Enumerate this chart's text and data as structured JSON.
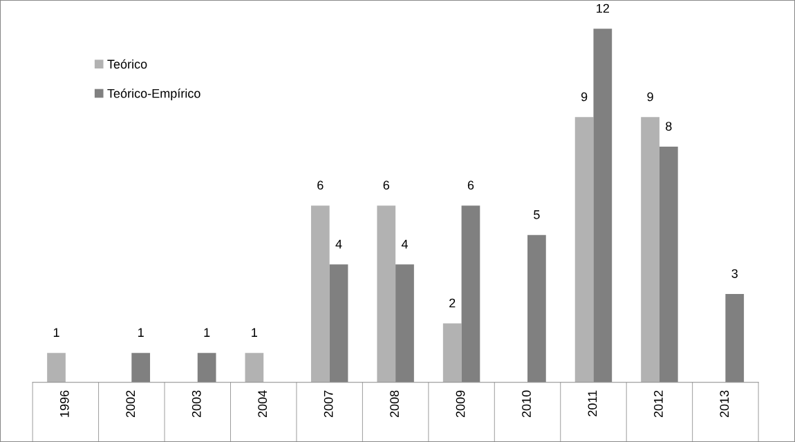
{
  "chart_data": {
    "type": "bar",
    "categories": [
      "1996",
      "2002",
      "2003",
      "2004",
      "2007",
      "2008",
      "2009",
      "2010",
      "2011",
      "2012",
      "2013"
    ],
    "series": [
      {
        "name": "Teórico",
        "color": "#b2b2b2",
        "values": [
          1,
          null,
          null,
          1,
          6,
          6,
          2,
          null,
          9,
          9,
          null
        ]
      },
      {
        "name": "Teórico-Empírico",
        "color": "#808080",
        "values": [
          null,
          1,
          1,
          null,
          4,
          4,
          6,
          5,
          12,
          8,
          3
        ]
      }
    ],
    "data_labels": true,
    "legend": "top left"
  }
}
